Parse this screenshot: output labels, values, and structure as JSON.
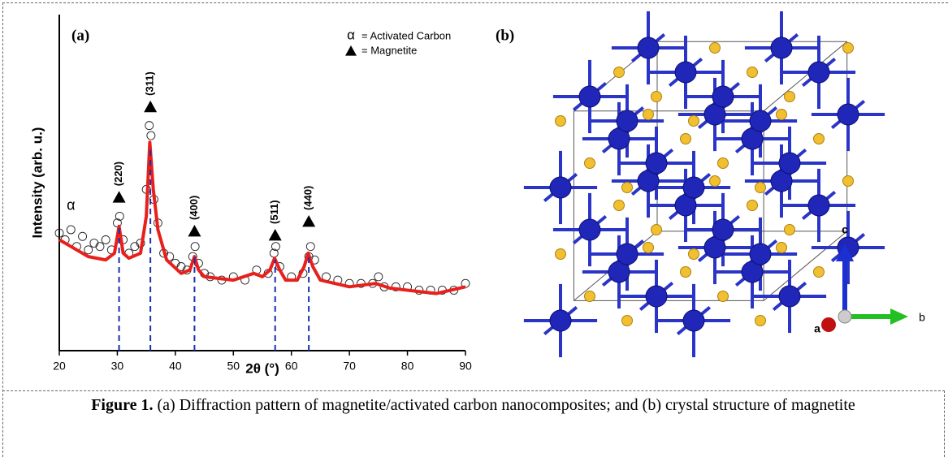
{
  "chart_data": {
    "type": "line",
    "panel_label": "(a)",
    "xlabel": "2θ (°)",
    "ylabel": "Intensity  (arb. u.)",
    "xlim": [
      20,
      90
    ],
    "xticks": [
      20,
      30,
      40,
      50,
      60,
      70,
      80,
      90
    ],
    "ylim": [
      0,
      100
    ],
    "series": [
      {
        "mode": "markers",
        "color": "#222222",
        "x": [
          20,
          21,
          22,
          23,
          24,
          25,
          26,
          27,
          28,
          29,
          30,
          30.4,
          31,
          32,
          33,
          34,
          35,
          35.5,
          35.8,
          36.3,
          37,
          38,
          39,
          40,
          41,
          42,
          43,
          43.4,
          44,
          45,
          46,
          48,
          50,
          52,
          54,
          56,
          57,
          57.3,
          58,
          60,
          62,
          63,
          63.3,
          64,
          66,
          68,
          70,
          72,
          74,
          75,
          76,
          78,
          80,
          82,
          84,
          86,
          88,
          90
        ],
        "values": [
          35,
          33,
          36,
          31,
          34,
          30,
          32,
          31,
          33,
          30,
          38,
          40,
          33,
          29,
          31,
          32,
          48,
          67,
          64,
          45,
          38,
          29,
          28,
          26,
          25,
          24,
          28,
          31,
          26,
          23,
          22,
          21,
          22,
          21,
          24,
          23,
          29,
          31,
          25,
          22,
          23,
          28,
          31,
          27,
          22,
          21,
          20,
          20,
          20,
          22,
          19,
          19,
          19,
          18,
          18,
          18,
          18,
          20
        ]
      },
      {
        "mode": "line",
        "color": "#e8201c",
        "x": [
          20,
          22,
          25,
          28,
          29.5,
          30.3,
          31,
          32,
          34,
          35,
          35.6,
          36.2,
          37,
          38.5,
          41,
          42.5,
          43.3,
          44,
          45,
          50,
          53.5,
          55,
          56.3,
          57.1,
          58,
          59,
          61,
          62.2,
          62.9,
          63.7,
          65,
          70,
          74.5,
          77,
          85,
          90
        ],
        "values": [
          33,
          31,
          28,
          27,
          29,
          37,
          29,
          27.5,
          29,
          40,
          62,
          48,
          36,
          27,
          23,
          24,
          28,
          24,
          22,
          21,
          23,
          22,
          24,
          27.5,
          24,
          21,
          21,
          25,
          29,
          25,
          21,
          19,
          20,
          18.6,
          17,
          19
        ]
      }
    ],
    "peaks": [
      {
        "x": 30.3,
        "y": 45.6,
        "label": "(220)"
      },
      {
        "x": 35.7,
        "y": 72.5,
        "label": "(311)"
      },
      {
        "x": 43.3,
        "y": 35.5,
        "label": "(400)"
      },
      {
        "x": 57.2,
        "y": 34.3,
        "label": "(511)"
      },
      {
        "x": 63.0,
        "y": 38.4,
        "label": "(440)"
      }
    ],
    "alpha_annotation": {
      "x": 22,
      "y": 43,
      "text": "α"
    },
    "legend": [
      {
        "symbol": "α",
        "label": "= Activated Carbon"
      },
      {
        "label": "= Magnetite"
      }
    ]
  },
  "structure": {
    "panel_label": "(b)",
    "axis_labels": [
      "a",
      "b",
      "c"
    ]
  },
  "caption": {
    "label": "Figure 1.",
    "text": "(a) Diffraction pattern of magnetite/activated carbon nanocomposites; and (b) crystal structure of magnetite"
  }
}
